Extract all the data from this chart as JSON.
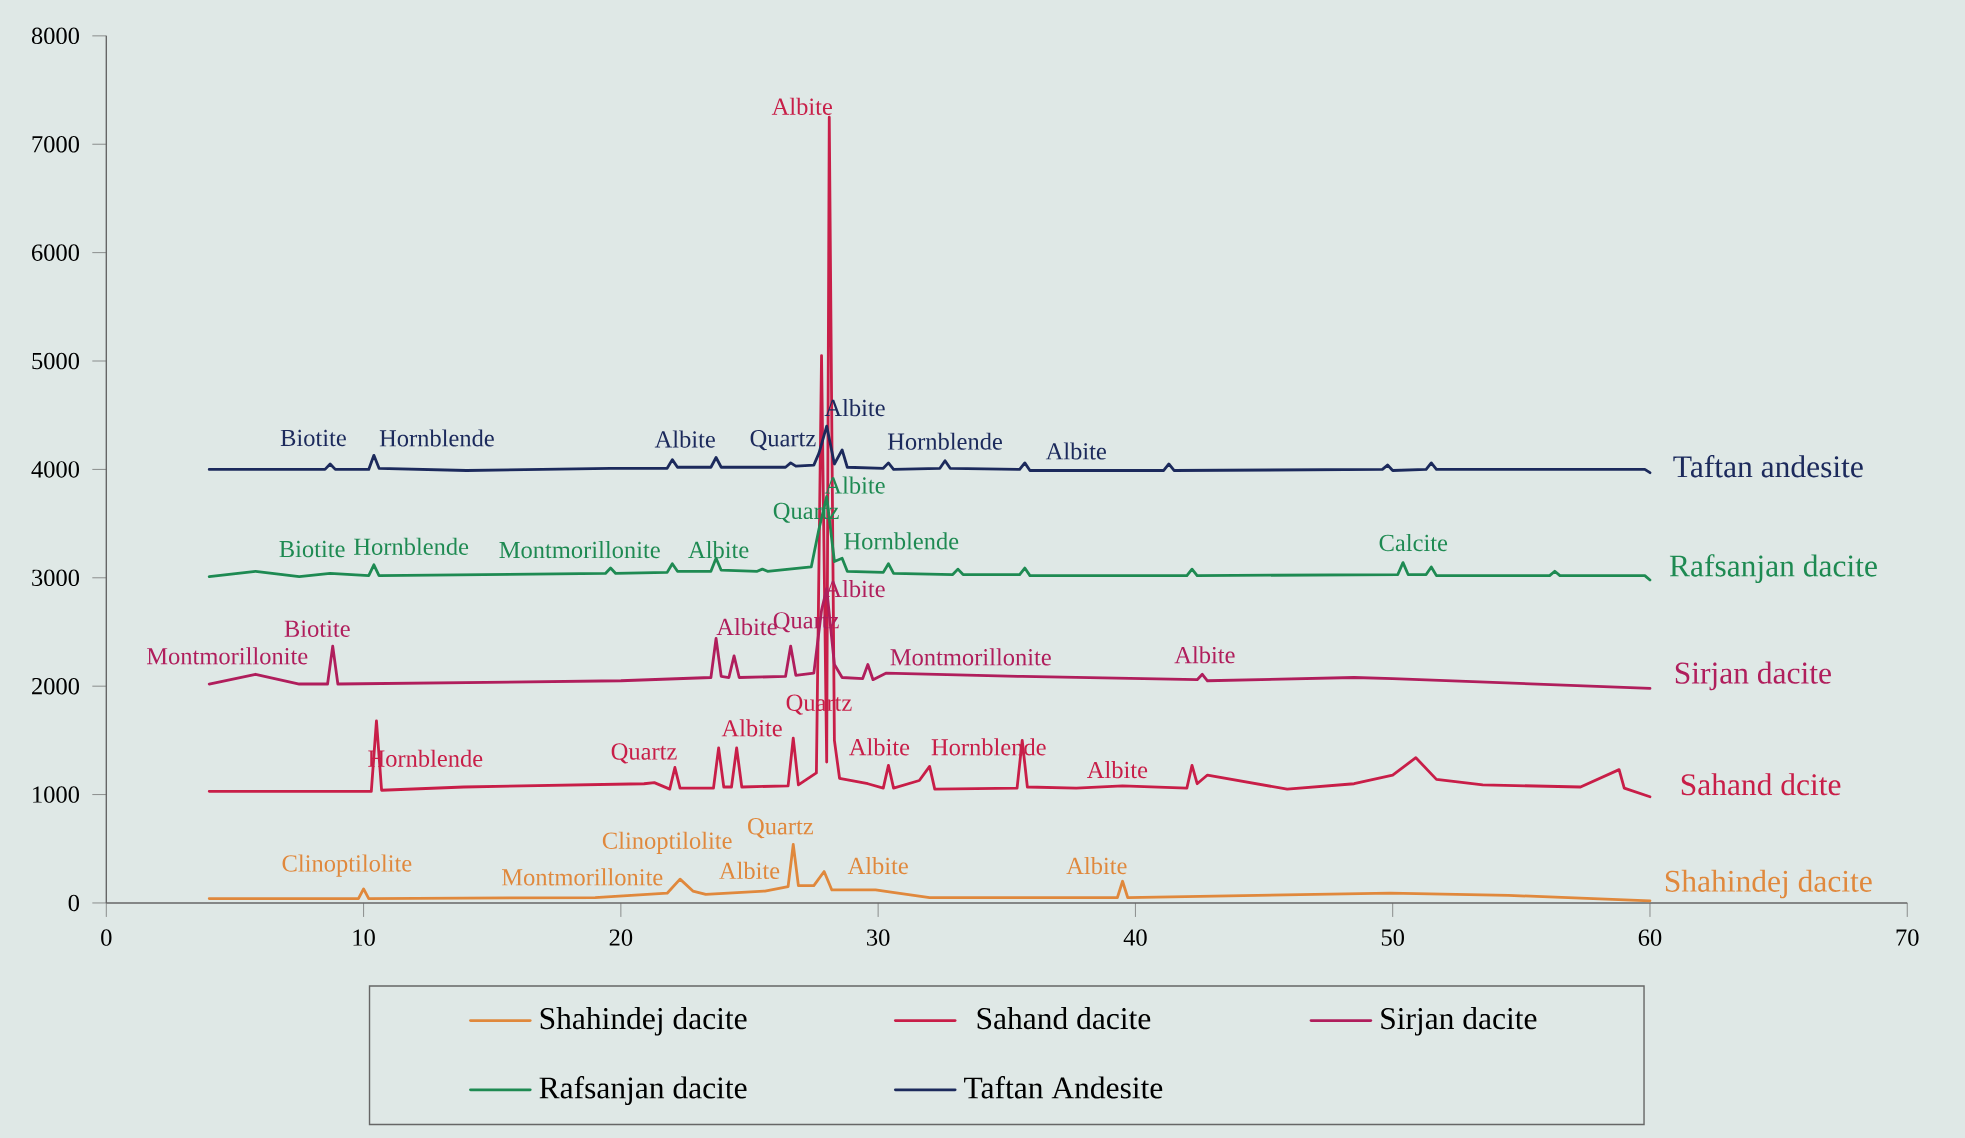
{
  "chart_data": {
    "type": "line",
    "xlim": [
      0,
      70
    ],
    "ylim": [
      0,
      8000
    ],
    "xticks": [
      0,
      10,
      20,
      30,
      40,
      50,
      60,
      70
    ],
    "yticks": [
      0,
      1000,
      2000,
      3000,
      4000,
      5000,
      6000,
      7000,
      8000
    ],
    "grid": false,
    "legend": "bottom",
    "marker": "none",
    "line_style": "solid",
    "series": [
      {
        "name": "Shahindej dacite",
        "color": "#e0883c",
        "x": [
          4,
          9.8,
          10.0,
          10.2,
          19,
          21.8,
          22.3,
          22.8,
          23.3,
          25.6,
          26.5,
          26.7,
          26.9,
          27.5,
          27.9,
          28.2,
          29.9,
          30.5,
          32,
          39.3,
          39.5,
          39.7,
          49.9,
          54.5,
          60
        ],
        "values": [
          40,
          40,
          130,
          40,
          50,
          90,
          220,
          110,
          80,
          110,
          150,
          540,
          160,
          160,
          290,
          120,
          120,
          100,
          50,
          50,
          200,
          50,
          90,
          70,
          20
        ]
      },
      {
        "name": "Sahand dacite",
        "color": "#c81e48",
        "x": [
          4,
          10.3,
          10.5,
          10.7,
          13.9,
          20.9,
          21.3,
          21.9,
          22.1,
          22.3,
          23.6,
          23.8,
          24.0,
          24.3,
          24.5,
          24.7,
          26.5,
          26.7,
          26.9,
          27.6,
          27.8,
          28.0,
          28.1,
          28.3,
          28.5,
          29.6,
          30.2,
          30.4,
          30.6,
          31.6,
          32.0,
          32.2,
          35.4,
          35.6,
          35.8,
          37.7,
          39.5,
          42.0,
          42.2,
          42.4,
          42.8,
          45.9,
          48.5,
          50.0,
          50.9,
          51.7,
          53.5,
          57.3,
          58.8,
          59.0,
          60
        ],
        "values": [
          1030,
          1030,
          1680,
          1040,
          1070,
          1100,
          1110,
          1050,
          1250,
          1060,
          1060,
          1430,
          1070,
          1070,
          1430,
          1070,
          1080,
          1520,
          1090,
          1200,
          5050,
          1300,
          7250,
          1500,
          1150,
          1100,
          1060,
          1270,
          1060,
          1130,
          1260,
          1050,
          1060,
          1500,
          1070,
          1060,
          1080,
          1060,
          1270,
          1100,
          1180,
          1050,
          1100,
          1180,
          1340,
          1140,
          1090,
          1070,
          1230,
          1060,
          980
        ]
      },
      {
        "name": "Sirjan dacite",
        "color": "#b01e5c",
        "x": [
          4,
          5.8,
          7.5,
          8.6,
          8.8,
          9.0,
          20,
          23.5,
          23.7,
          23.9,
          24.2,
          24.4,
          24.6,
          26.4,
          26.6,
          26.8,
          27.5,
          27.8,
          28.0,
          28.3,
          28.6,
          29.4,
          29.6,
          29.8,
          30.3,
          35.6,
          42.4,
          42.6,
          42.8,
          48.5,
          50.0,
          60
        ],
        "values": [
          2020,
          2110,
          2020,
          2020,
          2370,
          2020,
          2050,
          2080,
          2440,
          2090,
          2080,
          2280,
          2080,
          2090,
          2370,
          2100,
          2120,
          2700,
          2900,
          2200,
          2080,
          2070,
          2200,
          2060,
          2120,
          2090,
          2060,
          2110,
          2050,
          2080,
          2070,
          1980
        ]
      },
      {
        "name": "Rafsanjan dacite",
        "color": "#1e8a52",
        "x": [
          4,
          5.8,
          7.5,
          8.7,
          10.2,
          10.4,
          10.6,
          19.4,
          19.6,
          19.8,
          21.8,
          22.0,
          22.2,
          23.5,
          23.7,
          23.9,
          25.3,
          25.5,
          25.7,
          27.4,
          27.7,
          28.0,
          28.3,
          28.6,
          28.8,
          30.2,
          30.4,
          30.6,
          32.9,
          33.1,
          33.3,
          35.5,
          35.7,
          35.9,
          42.0,
          42.2,
          42.4,
          50.2,
          50.4,
          50.6,
          51.3,
          51.5,
          51.7,
          56.1,
          56.3,
          56.5,
          59.8,
          60
        ],
        "values": [
          3010,
          3060,
          3010,
          3040,
          3020,
          3120,
          3020,
          3040,
          3090,
          3040,
          3050,
          3130,
          3060,
          3060,
          3180,
          3070,
          3060,
          3080,
          3060,
          3100,
          3450,
          3750,
          3150,
          3180,
          3060,
          3050,
          3130,
          3040,
          3030,
          3080,
          3030,
          3030,
          3090,
          3020,
          3020,
          3080,
          3020,
          3030,
          3140,
          3030,
          3030,
          3100,
          3020,
          3020,
          3060,
          3020,
          3020,
          2980
        ]
      },
      {
        "name": "Taftan Andesite",
        "color": "#1c2a5c",
        "x": [
          4,
          8.5,
          8.7,
          8.9,
          10.2,
          10.4,
          10.6,
          14,
          19.6,
          21.8,
          22.0,
          22.2,
          23.5,
          23.7,
          23.9,
          26.4,
          26.6,
          26.8,
          27.5,
          27.7,
          28.0,
          28.3,
          28.6,
          28.8,
          30.2,
          30.4,
          30.6,
          32.4,
          32.6,
          32.8,
          35.5,
          35.7,
          35.9,
          41.1,
          41.3,
          41.5,
          49.6,
          49.8,
          50.0,
          51.3,
          51.5,
          51.7,
          59.8,
          60
        ],
        "values": [
          4000,
          4000,
          4050,
          4000,
          4000,
          4130,
          4010,
          3990,
          4010,
          4010,
          4090,
          4020,
          4020,
          4110,
          4020,
          4020,
          4060,
          4030,
          4040,
          4150,
          4400,
          4050,
          4180,
          4020,
          4010,
          4060,
          4000,
          4010,
          4080,
          4010,
          4000,
          4060,
          3990,
          3990,
          4050,
          3990,
          4000,
          4040,
          3990,
          4000,
          4060,
          4000,
          4000,
          3970
        ]
      }
    ],
    "annotations": [
      {
        "text": "Biotite",
        "x": 8.7,
        "y": 4050
      },
      {
        "text": "Hornblende",
        "x": 10.4,
        "y": 4130
      },
      {
        "text": "Albite",
        "x": 22.0,
        "y": 4090
      },
      {
        "text": "Quartz",
        "x": 26.6,
        "y": 4060
      },
      {
        "text": "Albite",
        "x": 28.0,
        "y": 4400
      },
      {
        "text": "Hornblende",
        "x": 32.6,
        "y": 4080
      },
      {
        "text": "Albite",
        "x": 35.7,
        "y": 4060
      },
      {
        "text": "Biotite",
        "x": 8.7,
        "y": 3040
      },
      {
        "text": "Hornblende",
        "x": 10.4,
        "y": 3120
      },
      {
        "text": "Montmorillonite",
        "x": 19.6,
        "y": 3090
      },
      {
        "text": "Albite",
        "x": 23.7,
        "y": 3180
      },
      {
        "text": "Quartz",
        "x": 27.7,
        "y": 3450
      },
      {
        "text": "Albite",
        "x": 28.0,
        "y": 3750
      },
      {
        "text": "Hornblende",
        "x": 28.6,
        "y": 3180
      },
      {
        "text": "Calcite",
        "x": 50.4,
        "y": 3140
      },
      {
        "text": "Montmorillonite",
        "x": 5.8,
        "y": 2110
      },
      {
        "text": "Biotite",
        "x": 8.8,
        "y": 2370
      },
      {
        "text": "Albite",
        "x": 23.7,
        "y": 2440
      },
      {
        "text": "Quartz",
        "x": 26.6,
        "y": 2370
      },
      {
        "text": "Albite",
        "x": 28.0,
        "y": 2900
      },
      {
        "text": "Montmorillonite",
        "x": 30.3,
        "y": 2120
      },
      {
        "text": "Albite",
        "x": 42.6,
        "y": 2110
      },
      {
        "text": "Albite",
        "x": 28.1,
        "y": 7250
      },
      {
        "text": "Hornblende",
        "x": 10.5,
        "y": 1680
      },
      {
        "text": "Quartz",
        "x": 22.1,
        "y": 1250
      },
      {
        "text": "Albite",
        "x": 23.8,
        "y": 1430
      },
      {
        "text": "Quartz",
        "x": 26.7,
        "y": 1520
      },
      {
        "text": "Albite",
        "x": 30.4,
        "y": 1270
      },
      {
        "text": "Hornblende",
        "x": 35.6,
        "y": 1500
      },
      {
        "text": "Albite",
        "x": 39.5,
        "y": 1080
      },
      {
        "text": "Clinoptilolite",
        "x": 10.0,
        "y": 130
      },
      {
        "text": "Montmorillonite",
        "x": 19,
        "y": 50
      },
      {
        "text": "Clinoptilolite",
        "x": 22.3,
        "y": 220
      },
      {
        "text": "Quartz",
        "x": 26.7,
        "y": 540
      },
      {
        "text": "Albite",
        "x": 25.6,
        "y": 110
      },
      {
        "text": "Albite",
        "x": 29.9,
        "y": 120
      },
      {
        "text": "Albite",
        "x": 39.5,
        "y": 200
      },
      {
        "text": "Taftan andesite",
        "x": 60,
        "y": 3970
      },
      {
        "text": "Rafsanjan dacite",
        "x": 60,
        "y": 2980
      },
      {
        "text": "Sirjan dacite",
        "x": 60,
        "y": 1980
      },
      {
        "text": "Sahand dcite",
        "x": 60,
        "y": 980
      },
      {
        "text": "Shahindej dacite",
        "x": 60,
        "y": 20
      }
    ]
  }
}
